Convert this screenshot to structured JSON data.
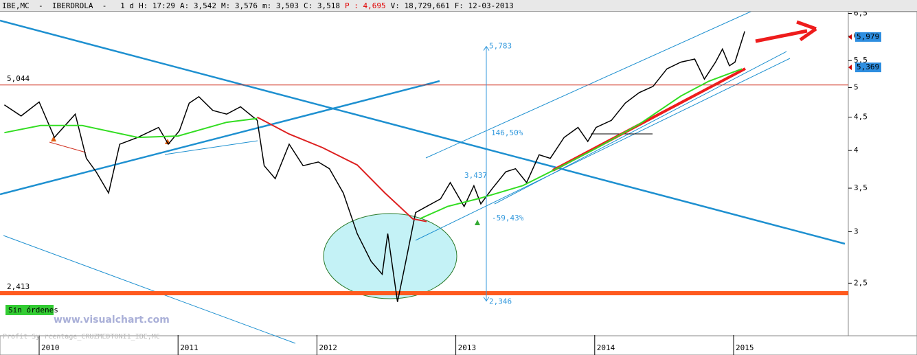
{
  "chart_data": {
    "type": "line",
    "title": "IBE,MC  -  IBERDROLA  -   1 d",
    "quote": [
      "H: 17:29",
      "A: 3,542",
      "M: 3,576",
      "m: 3,503",
      "C: 3,518",
      "P : 4,695",
      "V: 18,729,661",
      "F: 12-03-2013"
    ],
    "log_scale": true,
    "xlim": [
      2009.72,
      2015.83
    ],
    "xticks": [
      2010,
      2011,
      2012,
      2013,
      2014,
      2015
    ],
    "ylim": [
      2.08,
      6.54
    ],
    "yticks": [
      {
        "value": 6.5,
        "label": "6,5"
      },
      6,
      {
        "value": 5.5,
        "label": "5,5"
      },
      5,
      {
        "value": 4.5,
        "label": "4,5"
      },
      4,
      {
        "value": 3.5,
        "label": "3,5"
      },
      3,
      {
        "value": 2.5,
        "label": "2,5"
      }
    ],
    "series": [
      {
        "color": "#000000",
        "x": [
          2009.75,
          2009.87,
          2010.0,
          2010.11,
          2010.26,
          2010.34,
          2010.41,
          2010.5,
          2010.58,
          2010.71,
          2010.86,
          2010.93,
          2011.01,
          2011.08,
          2011.15,
          2011.25,
          2011.35,
          2011.45,
          2011.57,
          2011.62,
          2011.7,
          2011.8,
          2011.9,
          2012.01,
          2012.09,
          2012.19,
          2012.29,
          2012.39,
          2012.47,
          2012.51,
          2012.58,
          2012.64,
          2012.71,
          2012.79,
          2012.89,
          2012.96,
          2013.06,
          2013.13,
          2013.18,
          2013.26,
          2013.36,
          2013.43,
          2013.51,
          2013.6,
          2013.68,
          2013.78,
          2013.88,
          2013.95,
          2014.01,
          2014.12,
          2014.22,
          2014.32,
          2014.42,
          2014.52,
          2014.62,
          2014.72,
          2014.79,
          2014.87,
          2014.92,
          2014.97,
          2015.01,
          2015.08
        ],
        "values": [
          4.7,
          4.52,
          4.75,
          4.19,
          4.55,
          3.89,
          3.71,
          3.44,
          4.09,
          4.19,
          4.34,
          4.09,
          4.29,
          4.73,
          4.84,
          4.61,
          4.55,
          4.67,
          4.45,
          3.79,
          3.62,
          4.09,
          3.79,
          3.84,
          3.75,
          3.44,
          2.98,
          2.7,
          2.58,
          2.98,
          2.34,
          2.7,
          3.21,
          3.28,
          3.37,
          3.57,
          3.28,
          3.53,
          3.31,
          3.49,
          3.71,
          3.75,
          3.57,
          3.94,
          3.89,
          4.19,
          4.34,
          4.13,
          4.34,
          4.45,
          4.73,
          4.91,
          5.02,
          5.34,
          5.47,
          5.53,
          5.15,
          5.47,
          5.73,
          5.4,
          5.47,
          6.1
        ]
      },
      {
        "color": "#33dd22",
        "x": [
          2009.75,
          2010.01,
          2010.31,
          2010.71,
          2011.0,
          2011.35,
          2011.57,
          2012.2,
          2012.74,
          2012.94,
          2013.18,
          2013.48,
          2013.78,
          2014.02,
          2014.32,
          2014.62,
          2014.82,
          2015.06
        ],
        "values": [
          4.26,
          4.37,
          4.37,
          4.19,
          4.21,
          4.42,
          4.48,
          null,
          3.14,
          3.28,
          3.38,
          3.53,
          3.8,
          4.04,
          4.39,
          4.85,
          5.11,
          5.34
        ]
      },
      {
        "color": "#dd2020",
        "x": [
          2011.57,
          2011.8,
          2012.04,
          2012.29,
          2012.49,
          2012.69,
          2012.79
        ],
        "values": [
          4.5,
          4.24,
          4.04,
          3.8,
          3.44,
          3.14,
          3.11
        ]
      }
    ],
    "hlines": [
      {
        "value": 5.044,
        "label": "5,044",
        "color": "#d03020"
      },
      {
        "value": 2.413,
        "label": "2,413",
        "color": "#ff5a1e"
      }
    ],
    "price_marks": [
      {
        "value": 5.979,
        "label": "5,979"
      },
      {
        "value": 5.369,
        "label": "5,369"
      }
    ],
    "measure": {
      "top": {
        "value": 5.783,
        "label": "5,783"
      },
      "bottom": {
        "value": 2.346,
        "label": "2,346"
      },
      "up": "146,50%",
      "down": "-59,43%",
      "level": "3,437"
    },
    "status": "Sin órdenes",
    "watermark": "www.visualchart.com",
    "footer": "Profit Sy           rcentage_CRUZMEDTONI1_IBE,MC"
  }
}
